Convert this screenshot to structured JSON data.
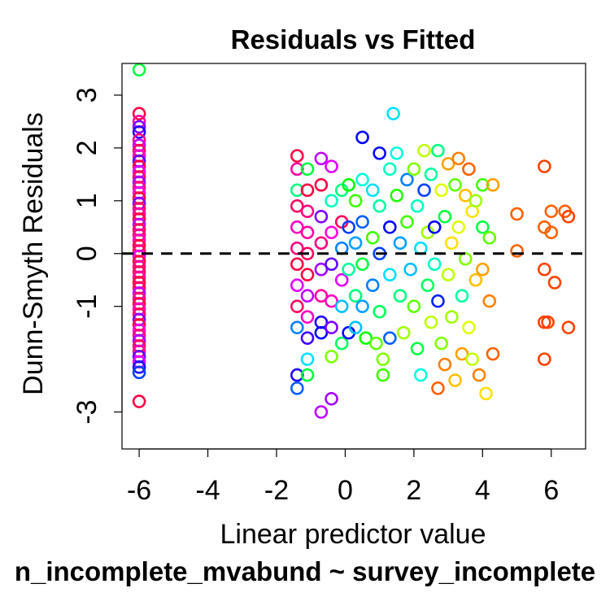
{
  "chart_data": {
    "type": "scatter",
    "title": "Residuals vs Fitted",
    "xlabel": "Linear predictor value",
    "ylabel": "Dunn-Smyth Residuals",
    "subtitle": "n_incomplete_mvabund ~ survey_incomplete",
    "xlim": [
      -6.5,
      7.0
    ],
    "ylim": [
      -3.7,
      3.6
    ],
    "x_ticks": [
      -6,
      -4,
      -2,
      0,
      2,
      4,
      6
    ],
    "y_ticks": [
      -3,
      -1,
      0,
      1,
      2,
      3
    ],
    "x_tick_labels": [
      "-6",
      "-4",
      "-2",
      "0",
      "2",
      "4",
      "6"
    ],
    "y_tick_labels": [
      "-3",
      "-1",
      "0",
      "1",
      "2",
      "3"
    ],
    "reference_line": {
      "y": 0,
      "style": "dashed"
    },
    "grid": false,
    "legend": "none",
    "marker": "open-circle",
    "points": [
      {
        "x": -6.0,
        "y": 3.48,
        "c": "#00ff40"
      },
      {
        "x": -6.0,
        "y": 2.65,
        "c": "#ff0040"
      },
      {
        "x": -6.0,
        "y": 2.5,
        "c": "#ff00a0"
      },
      {
        "x": -6.0,
        "y": 2.4,
        "c": "#8000ff"
      },
      {
        "x": -6.0,
        "y": 2.3,
        "c": "#2000ff"
      },
      {
        "x": -6.0,
        "y": 2.15,
        "c": "#ff0080"
      },
      {
        "x": -6.0,
        "y": 2.05,
        "c": "#c000ff"
      },
      {
        "x": -6.0,
        "y": 1.95,
        "c": "#ff0060"
      },
      {
        "x": -6.0,
        "y": 1.85,
        "c": "#ff00c0"
      },
      {
        "x": -6.0,
        "y": 1.75,
        "c": "#6000ff"
      },
      {
        "x": -6.0,
        "y": 1.65,
        "c": "#ff0040"
      },
      {
        "x": -6.0,
        "y": 1.55,
        "c": "#e000ff"
      },
      {
        "x": -6.0,
        "y": 1.45,
        "c": "#ff0060"
      },
      {
        "x": -6.0,
        "y": 1.35,
        "c": "#a000ff"
      },
      {
        "x": -6.0,
        "y": 1.25,
        "c": "#ff0080"
      },
      {
        "x": -6.0,
        "y": 1.15,
        "c": "#ff00e0"
      },
      {
        "x": -6.0,
        "y": 1.05,
        "c": "#ff0040"
      },
      {
        "x": -6.0,
        "y": 0.95,
        "c": "#8000ff"
      },
      {
        "x": -6.0,
        "y": 0.85,
        "c": "#ff0060"
      },
      {
        "x": -6.0,
        "y": 0.75,
        "c": "#ff00a0"
      },
      {
        "x": -6.0,
        "y": 0.65,
        "c": "#ff0040"
      },
      {
        "x": -6.0,
        "y": 0.55,
        "c": "#c000ff"
      },
      {
        "x": -6.0,
        "y": 0.45,
        "c": "#ff0060"
      },
      {
        "x": -6.0,
        "y": 0.35,
        "c": "#ff0080"
      },
      {
        "x": -6.0,
        "y": 0.25,
        "c": "#ff00c0"
      },
      {
        "x": -6.0,
        "y": 0.15,
        "c": "#ff0040"
      },
      {
        "x": -6.0,
        "y": 0.05,
        "c": "#ff0060"
      },
      {
        "x": -6.0,
        "y": -0.05,
        "c": "#e000ff"
      },
      {
        "x": -6.0,
        "y": -0.15,
        "c": "#ff0040"
      },
      {
        "x": -6.0,
        "y": -0.25,
        "c": "#ff0080"
      },
      {
        "x": -6.0,
        "y": -0.35,
        "c": "#ff0060"
      },
      {
        "x": -6.0,
        "y": -0.45,
        "c": "#ff00a0"
      },
      {
        "x": -6.0,
        "y": -0.55,
        "c": "#ff0040"
      },
      {
        "x": -6.0,
        "y": -0.65,
        "c": "#ff0060"
      },
      {
        "x": -6.0,
        "y": -0.75,
        "c": "#c000ff"
      },
      {
        "x": -6.0,
        "y": -0.85,
        "c": "#ff0080"
      },
      {
        "x": -6.0,
        "y": -0.95,
        "c": "#ff0040"
      },
      {
        "x": -6.0,
        "y": -1.05,
        "c": "#ff00c0"
      },
      {
        "x": -6.0,
        "y": -1.15,
        "c": "#ff0060"
      },
      {
        "x": -6.0,
        "y": -1.25,
        "c": "#8000ff"
      },
      {
        "x": -6.0,
        "y": -1.35,
        "c": "#ff0040"
      },
      {
        "x": -6.0,
        "y": -1.45,
        "c": "#ff00e0"
      },
      {
        "x": -6.0,
        "y": -1.55,
        "c": "#ff0080"
      },
      {
        "x": -6.0,
        "y": -1.65,
        "c": "#a000ff"
      },
      {
        "x": -6.0,
        "y": -1.75,
        "c": "#ff0060"
      },
      {
        "x": -6.0,
        "y": -1.85,
        "c": "#ff00a0"
      },
      {
        "x": -6.0,
        "y": -1.95,
        "c": "#6000ff"
      },
      {
        "x": -6.0,
        "y": -2.05,
        "c": "#e000ff"
      },
      {
        "x": -6.0,
        "y": -2.15,
        "c": "#2000ff"
      },
      {
        "x": -6.0,
        "y": -2.25,
        "c": "#0040ff"
      },
      {
        "x": -6.0,
        "y": -2.8,
        "c": "#ff0040"
      },
      {
        "x": -1.4,
        "y": 1.85,
        "c": "#ff0040"
      },
      {
        "x": -1.4,
        "y": 1.6,
        "c": "#ff00a0"
      },
      {
        "x": -1.4,
        "y": 1.2,
        "c": "#00ff80"
      },
      {
        "x": -1.4,
        "y": 0.9,
        "c": "#ff0060"
      },
      {
        "x": -1.4,
        "y": 0.5,
        "c": "#ff00c0"
      },
      {
        "x": -1.4,
        "y": 0.1,
        "c": "#ff0080"
      },
      {
        "x": -1.4,
        "y": -0.2,
        "c": "#ff0040"
      },
      {
        "x": -1.4,
        "y": -0.6,
        "c": "#e000ff"
      },
      {
        "x": -1.4,
        "y": -1.0,
        "c": "#ff0060"
      },
      {
        "x": -1.4,
        "y": -1.4,
        "c": "#0080ff"
      },
      {
        "x": -1.4,
        "y": -2.3,
        "c": "#2000ff"
      },
      {
        "x": -1.4,
        "y": -2.55,
        "c": "#0060ff"
      },
      {
        "x": -1.1,
        "y": 1.6,
        "c": "#00ff40"
      },
      {
        "x": -1.1,
        "y": 1.2,
        "c": "#ff0040"
      },
      {
        "x": -1.1,
        "y": 0.8,
        "c": "#ff0080"
      },
      {
        "x": -1.1,
        "y": 0.4,
        "c": "#ff00a0"
      },
      {
        "x": -1.1,
        "y": 0.0,
        "c": "#ff0060"
      },
      {
        "x": -1.1,
        "y": -0.4,
        "c": "#ff0040"
      },
      {
        "x": -1.1,
        "y": -0.8,
        "c": "#c000ff"
      },
      {
        "x": -1.1,
        "y": -1.2,
        "c": "#ff00c0"
      },
      {
        "x": -1.1,
        "y": -1.6,
        "c": "#4000ff"
      },
      {
        "x": -1.1,
        "y": -2.0,
        "c": "#00e0ff"
      },
      {
        "x": -1.1,
        "y": -2.3,
        "c": "#00ff40"
      },
      {
        "x": -0.7,
        "y": 1.8,
        "c": "#c000ff"
      },
      {
        "x": -0.7,
        "y": 1.3,
        "c": "#ff0040"
      },
      {
        "x": -0.7,
        "y": 0.7,
        "c": "#8000ff"
      },
      {
        "x": -0.7,
        "y": 0.2,
        "c": "#ff0080"
      },
      {
        "x": -0.7,
        "y": -0.3,
        "c": "#a000ff"
      },
      {
        "x": -0.7,
        "y": -0.8,
        "c": "#ff00a0"
      },
      {
        "x": -0.7,
        "y": -1.3,
        "c": "#2000ff"
      },
      {
        "x": -0.7,
        "y": -1.5,
        "c": "#0000ff"
      },
      {
        "x": -0.7,
        "y": -3.0,
        "c": "#c000ff"
      },
      {
        "x": -0.4,
        "y": 1.65,
        "c": "#e000ff"
      },
      {
        "x": -0.4,
        "y": 1.0,
        "c": "#00ffc0"
      },
      {
        "x": -0.4,
        "y": 0.4,
        "c": "#ff00e0"
      },
      {
        "x": -0.4,
        "y": -0.2,
        "c": "#6000ff"
      },
      {
        "x": -0.4,
        "y": -0.9,
        "c": "#ff00c0"
      },
      {
        "x": -0.4,
        "y": -1.4,
        "c": "#8000ff"
      },
      {
        "x": -0.4,
        "y": -1.95,
        "c": "#80ff00"
      },
      {
        "x": -0.4,
        "y": -2.75,
        "c": "#a000ff"
      },
      {
        "x": -0.1,
        "y": 1.2,
        "c": "#00ff80"
      },
      {
        "x": -0.1,
        "y": 0.6,
        "c": "#ff0060"
      },
      {
        "x": -0.1,
        "y": 0.1,
        "c": "#0080ff"
      },
      {
        "x": -0.1,
        "y": -0.5,
        "c": "#e000ff"
      },
      {
        "x": -0.1,
        "y": -1.0,
        "c": "#00c0ff"
      },
      {
        "x": -0.1,
        "y": -1.7,
        "c": "#00ff60"
      },
      {
        "x": 0.1,
        "y": 1.3,
        "c": "#00ff00"
      },
      {
        "x": 0.1,
        "y": 0.5,
        "c": "#0040ff"
      },
      {
        "x": 0.1,
        "y": -0.3,
        "c": "#00ffa0"
      },
      {
        "x": 0.1,
        "y": -1.5,
        "c": "#0000ff"
      },
      {
        "x": 0.3,
        "y": 1.0,
        "c": "#40ff00"
      },
      {
        "x": 0.3,
        "y": 0.2,
        "c": "#00a0ff"
      },
      {
        "x": 0.3,
        "y": -0.8,
        "c": "#00ff80"
      },
      {
        "x": 0.3,
        "y": -1.4,
        "c": "#00c0ff"
      },
      {
        "x": 0.5,
        "y": 2.2,
        "c": "#0000ff"
      },
      {
        "x": 0.5,
        "y": 1.4,
        "c": "#00ffe0"
      },
      {
        "x": 0.5,
        "y": 0.6,
        "c": "#0060ff"
      },
      {
        "x": 0.5,
        "y": -0.2,
        "c": "#00ff40"
      },
      {
        "x": 0.5,
        "y": -1.0,
        "c": "#00a0ff"
      },
      {
        "x": 0.6,
        "y": -1.6,
        "c": "#00ff00"
      },
      {
        "x": 0.8,
        "y": 1.2,
        "c": "#00e0ff"
      },
      {
        "x": 0.8,
        "y": 0.3,
        "c": "#40ff00"
      },
      {
        "x": 0.8,
        "y": -0.6,
        "c": "#0080ff"
      },
      {
        "x": 0.9,
        "y": -1.7,
        "c": "#60ff00"
      },
      {
        "x": 1.0,
        "y": 1.9,
        "c": "#0000ff"
      },
      {
        "x": 1.0,
        "y": 0.9,
        "c": "#00ffa0"
      },
      {
        "x": 1.0,
        "y": 0.0,
        "c": "#0040ff"
      },
      {
        "x": 1.0,
        "y": -1.1,
        "c": "#00ff60"
      },
      {
        "x": 1.1,
        "y": -2.0,
        "c": "#80ff00"
      },
      {
        "x": 1.1,
        "y": -2.3,
        "c": "#40ff00"
      },
      {
        "x": 1.3,
        "y": 1.6,
        "c": "#00ffc0"
      },
      {
        "x": 1.3,
        "y": 0.5,
        "c": "#0000ff"
      },
      {
        "x": 1.3,
        "y": -0.4,
        "c": "#00e0ff"
      },
      {
        "x": 1.3,
        "y": -1.6,
        "c": "#0060ff"
      },
      {
        "x": 1.4,
        "y": 2.65,
        "c": "#00e0ff"
      },
      {
        "x": 1.5,
        "y": 1.9,
        "c": "#00ffe0"
      },
      {
        "x": 1.5,
        "y": 1.1,
        "c": "#20ff00"
      },
      {
        "x": 1.6,
        "y": 0.2,
        "c": "#00a0ff"
      },
      {
        "x": 1.6,
        "y": -0.8,
        "c": "#00ff80"
      },
      {
        "x": 1.7,
        "y": -1.5,
        "c": "#a0ff00"
      },
      {
        "x": 1.8,
        "y": 1.4,
        "c": "#0080ff"
      },
      {
        "x": 1.8,
        "y": 0.6,
        "c": "#40ff00"
      },
      {
        "x": 1.9,
        "y": -0.3,
        "c": "#00c0ff"
      },
      {
        "x": 2.0,
        "y": -1.0,
        "c": "#60ff00"
      },
      {
        "x": 2.0,
        "y": 1.6,
        "c": "#80ff00"
      },
      {
        "x": 2.1,
        "y": 0.9,
        "c": "#00ffc0"
      },
      {
        "x": 2.1,
        "y": -1.8,
        "c": "#00ff40"
      },
      {
        "x": 2.2,
        "y": 0.1,
        "c": "#00e0ff"
      },
      {
        "x": 2.2,
        "y": -2.3,
        "c": "#00ffe0"
      },
      {
        "x": 2.3,
        "y": 1.95,
        "c": "#c0ff00"
      },
      {
        "x": 2.3,
        "y": 1.2,
        "c": "#0040ff"
      },
      {
        "x": 2.4,
        "y": 0.4,
        "c": "#a0ff00"
      },
      {
        "x": 2.4,
        "y": -0.6,
        "c": "#00ff60"
      },
      {
        "x": 2.5,
        "y": -1.3,
        "c": "#c0ff00"
      },
      {
        "x": 2.5,
        "y": 1.5,
        "c": "#00ffa0"
      },
      {
        "x": 2.6,
        "y": 0.5,
        "c": "#0000ff"
      },
      {
        "x": 2.6,
        "y": -0.2,
        "c": "#00ffc0"
      },
      {
        "x": 2.7,
        "y": 1.95,
        "c": "#00ff80"
      },
      {
        "x": 2.7,
        "y": -0.9,
        "c": "#0020ff"
      },
      {
        "x": 2.7,
        "y": -2.55,
        "c": "#ff6000"
      },
      {
        "x": 2.8,
        "y": 1.2,
        "c": "#e0ff00"
      },
      {
        "x": 2.8,
        "y": -1.7,
        "c": "#80ff00"
      },
      {
        "x": 2.9,
        "y": 0.7,
        "c": "#00ff40"
      },
      {
        "x": 2.9,
        "y": -2.1,
        "c": "#ff8000"
      },
      {
        "x": 3.0,
        "y": 1.7,
        "c": "#ffa000"
      },
      {
        "x": 3.0,
        "y": -0.4,
        "c": "#c0ff00"
      },
      {
        "x": 3.1,
        "y": 0.2,
        "c": "#ffe000"
      },
      {
        "x": 3.1,
        "y": -1.2,
        "c": "#a0ff00"
      },
      {
        "x": 3.2,
        "y": 1.3,
        "c": "#60ff00"
      },
      {
        "x": 3.2,
        "y": -2.4,
        "c": "#ffc000"
      },
      {
        "x": 3.3,
        "y": 1.8,
        "c": "#ff8000"
      },
      {
        "x": 3.3,
        "y": 0.5,
        "c": "#e0ff00"
      },
      {
        "x": 3.4,
        "y": -0.8,
        "c": "#00ffa0"
      },
      {
        "x": 3.4,
        "y": -1.9,
        "c": "#ffa000"
      },
      {
        "x": 3.5,
        "y": 1.1,
        "c": "#ffc000"
      },
      {
        "x": 3.5,
        "y": -0.1,
        "c": "#80ff00"
      },
      {
        "x": 3.6,
        "y": 1.6,
        "c": "#ff6000"
      },
      {
        "x": 3.6,
        "y": -1.4,
        "c": "#e0ff00"
      },
      {
        "x": 3.7,
        "y": 0.8,
        "c": "#ffe000"
      },
      {
        "x": 3.7,
        "y": -2.0,
        "c": "#c0ff00"
      },
      {
        "x": 3.8,
        "y": 1.0,
        "c": "#a0ff00"
      },
      {
        "x": 3.8,
        "y": -0.5,
        "c": "#ffc000"
      },
      {
        "x": 3.9,
        "y": -2.3,
        "c": "#ff8000"
      },
      {
        "x": 4.0,
        "y": 1.3,
        "c": "#40ff00"
      },
      {
        "x": 4.0,
        "y": 0.5,
        "c": "#00ff40"
      },
      {
        "x": 4.0,
        "y": -0.3,
        "c": "#ffa000"
      },
      {
        "x": 4.1,
        "y": -2.65,
        "c": "#ffe000"
      },
      {
        "x": 4.2,
        "y": 0.3,
        "c": "#60ff00"
      },
      {
        "x": 4.2,
        "y": -0.9,
        "c": "#ff8000"
      },
      {
        "x": 4.3,
        "y": 1.3,
        "c": "#ffa000"
      },
      {
        "x": 4.3,
        "y": -1.9,
        "c": "#ff6000"
      },
      {
        "x": 5.0,
        "y": 0.75,
        "c": "#ff6000"
      },
      {
        "x": 5.0,
        "y": 0.05,
        "c": "#ff6000"
      },
      {
        "x": 5.8,
        "y": 1.65,
        "c": "#ff4000"
      },
      {
        "x": 5.8,
        "y": 0.5,
        "c": "#ff6000"
      },
      {
        "x": 5.8,
        "y": -0.3,
        "c": "#ff4000"
      },
      {
        "x": 5.8,
        "y": -1.3,
        "c": "#ff4000"
      },
      {
        "x": 5.8,
        "y": -2.0,
        "c": "#ff4000"
      },
      {
        "x": 5.9,
        "y": -1.3,
        "c": "#ff4000"
      },
      {
        "x": 6.0,
        "y": 0.8,
        "c": "#ff6000"
      },
      {
        "x": 6.0,
        "y": 0.4,
        "c": "#ff6000"
      },
      {
        "x": 6.1,
        "y": -0.55,
        "c": "#ff4000"
      },
      {
        "x": 6.4,
        "y": 0.8,
        "c": "#ff6000"
      },
      {
        "x": 6.5,
        "y": 0.7,
        "c": "#ff4000"
      },
      {
        "x": 6.5,
        "y": -1.4,
        "c": "#ff4000"
      }
    ]
  }
}
